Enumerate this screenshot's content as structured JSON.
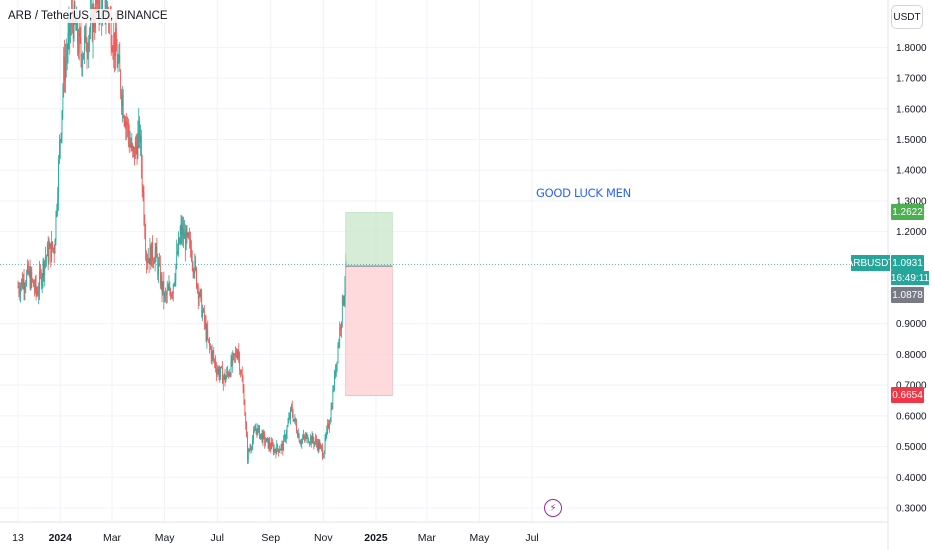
{
  "header": {
    "symbol_title": "ARB / TetherUS, 1D, BINANCE",
    "currency": "USDT"
  },
  "annotation": {
    "text": "GOOD LUCK MEN"
  },
  "tags": {
    "target_price": "1.2622",
    "symbol": "ARBUSDT",
    "last_price": "1.0931",
    "countdown": "16:49:11",
    "entry_price": "1.0878",
    "stop_price": "0.6654"
  },
  "markers": {
    "event_icon": "lightning-bolt-icon"
  },
  "colors": {
    "up": "#26a69a",
    "down": "#ef5350",
    "target_zone": "#c8e6c9",
    "stop_zone": "#ffcdd2",
    "target_tag": "#4caf50",
    "stop_tag": "#f23645",
    "entry_tag": "#787b86",
    "annotation": "#2962ff",
    "event_marker": "#9c27b0"
  },
  "chart_data": {
    "type": "candlestick",
    "title": "ARB / TetherUS, 1D, BINANCE",
    "xlabel": "",
    "ylabel": "",
    "y_unit": "USDT",
    "ylim": [
      0.27,
      1.9
    ],
    "grid": true,
    "x_tick_labels": [
      "13",
      "2024",
      "Mar",
      "May",
      "Jul",
      "Sep",
      "Nov",
      "2025",
      "Mar",
      "May",
      "Jul"
    ],
    "y_tick_labels": [
      "1.8000",
      "1.7000",
      "1.6000",
      "1.5000",
      "1.4000",
      "1.3000",
      "1.2000",
      "0.9000",
      "0.8000",
      "0.7000",
      "0.6000",
      "0.5000",
      "0.4000",
      "0.3000"
    ],
    "close_path": [
      [
        "2023-11-13",
        1.02
      ],
      [
        "2023-11-25",
        1.06
      ],
      [
        "2023-12-05",
        1.0
      ],
      [
        "2023-12-15",
        1.12
      ],
      [
        "2023-12-25",
        1.15
      ],
      [
        "2024-01-05",
        1.72
      ],
      [
        "2024-01-15",
        1.9
      ],
      [
        "2024-01-25",
        1.78
      ],
      [
        "2024-02-05",
        1.86
      ],
      [
        "2024-02-15",
        1.96
      ],
      [
        "2024-02-25",
        1.92
      ],
      [
        "2024-03-05",
        1.8
      ],
      [
        "2024-03-15",
        1.6
      ],
      [
        "2024-03-25",
        1.44
      ],
      [
        "2024-04-02",
        1.52
      ],
      [
        "2024-04-10",
        1.12
      ],
      [
        "2024-04-20",
        1.13
      ],
      [
        "2024-05-01",
        0.98
      ],
      [
        "2024-05-10",
        1.02
      ],
      [
        "2024-05-20",
        1.2
      ],
      [
        "2024-06-01",
        1.14
      ],
      [
        "2024-06-10",
        1.0
      ],
      [
        "2024-06-20",
        0.84
      ],
      [
        "2024-07-01",
        0.75
      ],
      [
        "2024-07-10",
        0.72
      ],
      [
        "2024-07-20",
        0.78
      ],
      [
        "2024-07-25",
        0.82
      ],
      [
        "2024-08-01",
        0.66
      ],
      [
        "2024-08-05",
        0.47
      ],
      [
        "2024-08-15",
        0.56
      ],
      [
        "2024-08-25",
        0.52
      ],
      [
        "2024-09-05",
        0.49
      ],
      [
        "2024-09-15",
        0.5
      ],
      [
        "2024-09-25",
        0.62
      ],
      [
        "2024-10-05",
        0.52
      ],
      [
        "2024-10-15",
        0.53
      ],
      [
        "2024-10-25",
        0.51
      ],
      [
        "2024-11-01",
        0.48
      ],
      [
        "2024-11-10",
        0.62
      ],
      [
        "2024-11-20",
        0.88
      ],
      [
        "2024-11-28",
        1.09
      ]
    ]
  },
  "position": {
    "start_date": "2024-11-27",
    "end_date": "2025-01-20",
    "entry": 1.0878,
    "target": 1.2622,
    "stop": 0.6654
  }
}
